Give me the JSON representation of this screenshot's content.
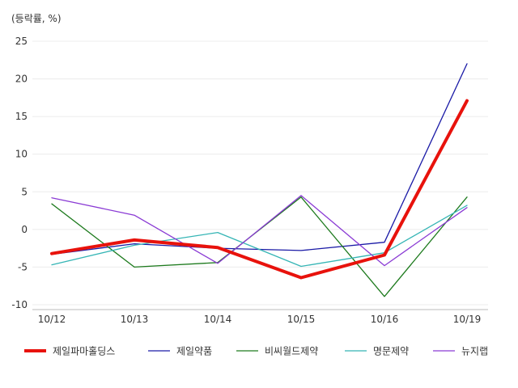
{
  "chart_data": {
    "type": "line",
    "unit_label": "(등락률, %)",
    "categories": [
      "10/12",
      "10/13",
      "10/14",
      "10/15",
      "10/16",
      "10/19"
    ],
    "ylim": [
      -10,
      25
    ],
    "yticks": [
      25,
      20,
      15,
      10,
      5,
      0,
      -5,
      -10
    ],
    "grid": true,
    "legend_position": "bottom",
    "series": [
      {
        "name": "제일파마홀딩스",
        "color": "#e8120c",
        "width": 4,
        "values": [
          -3.2,
          -1.4,
          -2.4,
          -6.4,
          -3.4,
          17.1
        ]
      },
      {
        "name": "제일약품",
        "color": "#1a1aa6",
        "width": 1.3,
        "values": [
          -3.3,
          -1.9,
          -2.5,
          -2.8,
          -1.7,
          22.0
        ]
      },
      {
        "name": "비씨월드제약",
        "color": "#1d7a1d",
        "width": 1.3,
        "values": [
          3.4,
          -5.0,
          -4.4,
          4.3,
          -8.9,
          4.3
        ]
      },
      {
        "name": "명문제약",
        "color": "#35b5b5",
        "width": 1.3,
        "values": [
          -4.7,
          -2.1,
          -0.4,
          -4.9,
          -3.1,
          3.2
        ]
      },
      {
        "name": "뉴지랩",
        "color": "#8a3ad4",
        "width": 1.3,
        "values": [
          4.2,
          1.9,
          -4.5,
          4.5,
          -4.8,
          2.9
        ]
      }
    ]
  }
}
